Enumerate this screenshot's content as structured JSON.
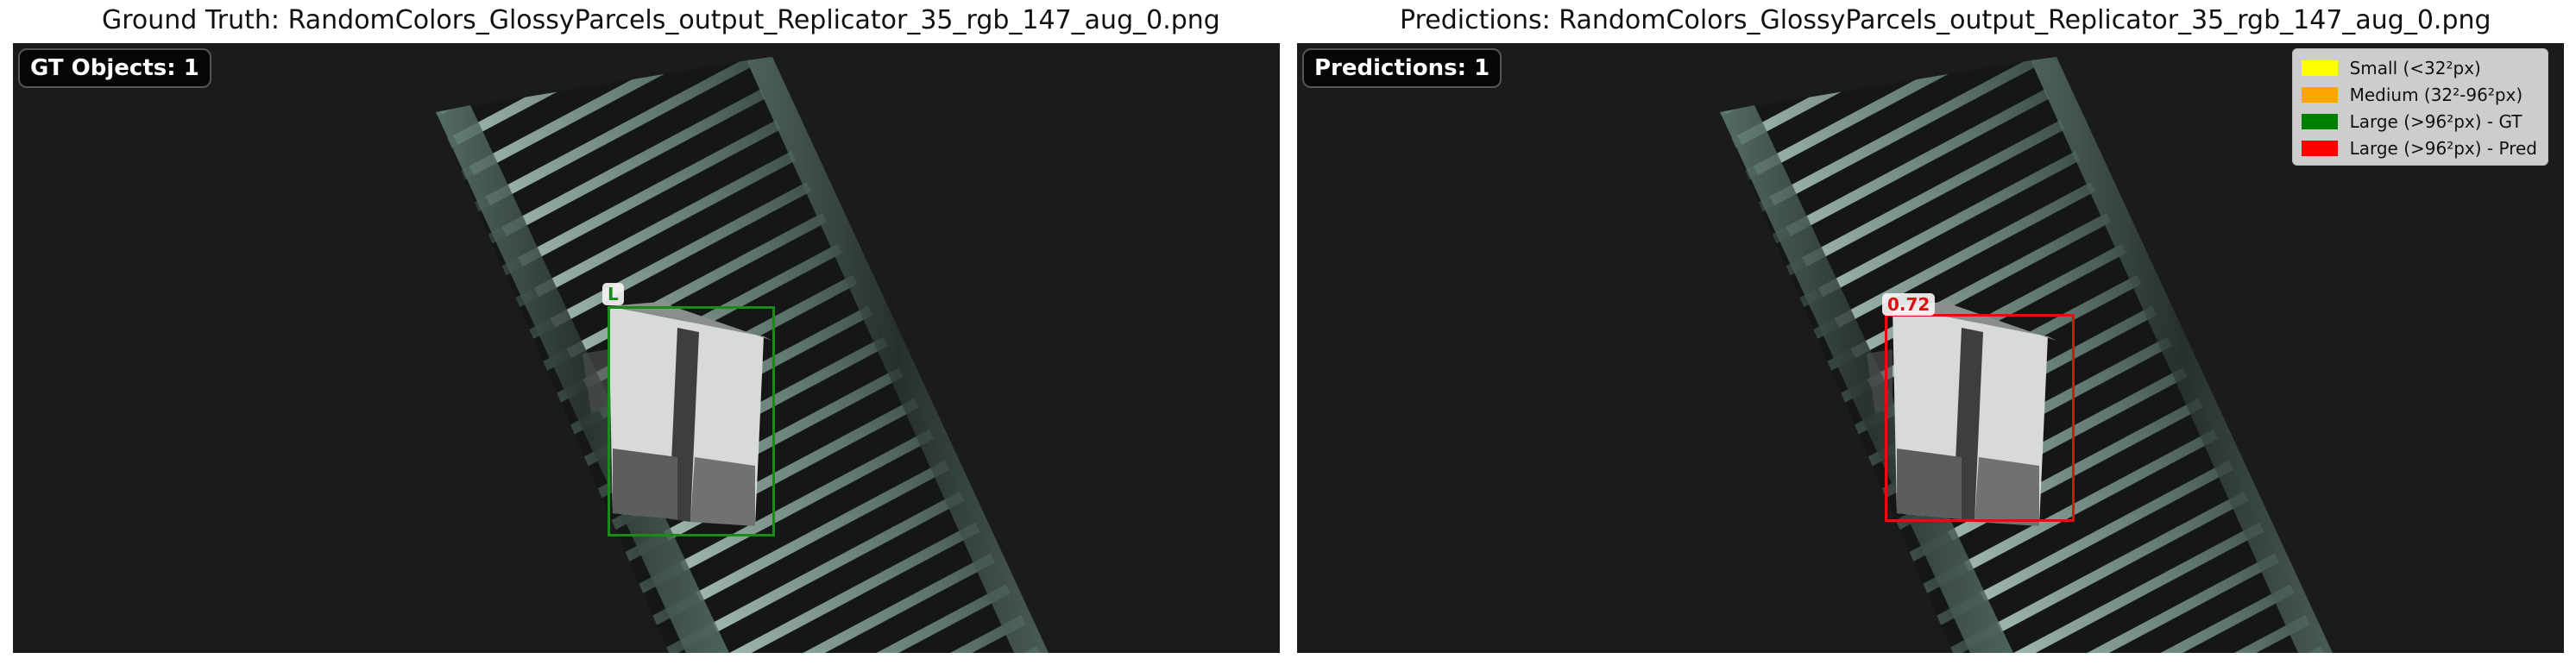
{
  "left_panel": {
    "title": "Ground Truth: RandomColors_GlossyParcels_output_Replicator_35_rgb_147_aug_0.png",
    "badge": "GT Objects: 1",
    "box": {
      "label": "L",
      "color": "#1a8a1a"
    }
  },
  "right_panel": {
    "title": "Predictions: RandomColors_GlossyParcels_output_Replicator_35_rgb_147_aug_0.png",
    "badge": "Predictions: 1",
    "box": {
      "label": "0.72",
      "color": "#e01010"
    }
  },
  "legend": {
    "items": [
      {
        "label": "Small (<32²px)",
        "color": "#ffff00"
      },
      {
        "label": "Medium (32²-96²px)",
        "color": "#ffa500"
      },
      {
        "label": "Large (>96²px) - GT",
        "color": "#008000"
      },
      {
        "label": "Large (>96²px) - Pred",
        "color": "#ff0000"
      }
    ]
  }
}
